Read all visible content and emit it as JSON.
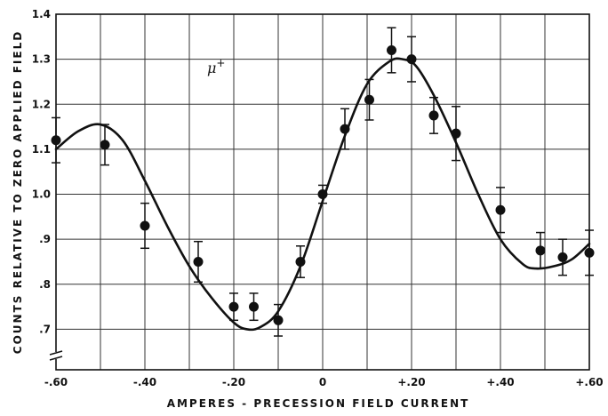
{
  "chart_data": {
    "type": "scatter",
    "title": "",
    "xlabel": "AMPERES - PRECESSION FIELD CURRENT",
    "ylabel": "COUNTS RELATIVE TO ZERO APPLIED FIELD",
    "xlim": [
      -0.6,
      0.6
    ],
    "ylim": [
      0.61,
      1.4
    ],
    "x_ticks": [
      {
        "value": -0.6,
        "label": "-.60"
      },
      {
        "value": -0.4,
        "label": "-.40"
      },
      {
        "value": -0.2,
        "label": "-.20"
      },
      {
        "value": 0.0,
        "label": "0"
      },
      {
        "value": 0.2,
        "label": "+.20"
      },
      {
        "value": 0.4,
        "label": "+.40"
      },
      {
        "value": 0.6,
        "label": "+.60"
      }
    ],
    "x_grid": [
      -0.6,
      -0.5,
      -0.4,
      -0.3,
      -0.2,
      -0.1,
      0.0,
      0.1,
      0.2,
      0.3,
      0.4,
      0.5,
      0.6
    ],
    "y_ticks": [
      {
        "value": 0.7,
        "label": ".7"
      },
      {
        "value": 0.8,
        "label": ".8"
      },
      {
        "value": 0.9,
        "label": ".9"
      },
      {
        "value": 1.0,
        "label": "1.0"
      },
      {
        "value": 1.1,
        "label": "1.1"
      },
      {
        "value": 1.2,
        "label": "1.2"
      },
      {
        "value": 1.3,
        "label": "1.3"
      },
      {
        "value": 1.4,
        "label": "1.4"
      }
    ],
    "grid": true,
    "axis_break": "y-bottom",
    "annotation": {
      "text": "μ",
      "superscript": "+",
      "x": -0.26,
      "y": 1.27
    },
    "series": [
      {
        "points": [
          {
            "x": -0.6,
            "y": 1.12,
            "err": 0.05
          },
          {
            "x": -0.49,
            "y": 1.11,
            "err": 0.045
          },
          {
            "x": -0.4,
            "y": 0.93,
            "err": 0.05
          },
          {
            "x": -0.28,
            "y": 0.85,
            "err": 0.045
          },
          {
            "x": -0.2,
            "y": 0.75,
            "err": 0.03
          },
          {
            "x": -0.155,
            "y": 0.75,
            "err": 0.03
          },
          {
            "x": -0.1,
            "y": 0.72,
            "err": 0.035
          },
          {
            "x": -0.05,
            "y": 0.85,
            "err": 0.035
          },
          {
            "x": 0.0,
            "y": 1.0,
            "err": 0.02
          },
          {
            "x": 0.05,
            "y": 1.145,
            "err": 0.045
          },
          {
            "x": 0.105,
            "y": 1.21,
            "err": 0.045
          },
          {
            "x": 0.155,
            "y": 1.32,
            "err": 0.05
          },
          {
            "x": 0.2,
            "y": 1.3,
            "err": 0.05
          },
          {
            "x": 0.25,
            "y": 1.175,
            "err": 0.04
          },
          {
            "x": 0.3,
            "y": 1.135,
            "err": 0.06
          },
          {
            "x": 0.4,
            "y": 0.965,
            "err": 0.05
          },
          {
            "x": 0.49,
            "y": 0.875,
            "err": 0.04
          },
          {
            "x": 0.54,
            "y": 0.86,
            "err": 0.04
          },
          {
            "x": 0.6,
            "y": 0.87,
            "err": 0.05
          }
        ]
      },
      {
        "type": "line",
        "curve": [
          {
            "x": -0.6,
            "y": 1.1
          },
          {
            "x": -0.55,
            "y": 1.14
          },
          {
            "x": -0.5,
            "y": 1.155
          },
          {
            "x": -0.45,
            "y": 1.12
          },
          {
            "x": -0.4,
            "y": 1.03
          },
          {
            "x": -0.35,
            "y": 0.93
          },
          {
            "x": -0.3,
            "y": 0.84
          },
          {
            "x": -0.25,
            "y": 0.77
          },
          {
            "x": -0.2,
            "y": 0.715
          },
          {
            "x": -0.17,
            "y": 0.7
          },
          {
            "x": -0.14,
            "y": 0.705
          },
          {
            "x": -0.1,
            "y": 0.74
          },
          {
            "x": -0.05,
            "y": 0.84
          },
          {
            "x": 0.0,
            "y": 0.985
          },
          {
            "x": 0.05,
            "y": 1.13
          },
          {
            "x": 0.1,
            "y": 1.245
          },
          {
            "x": 0.15,
            "y": 1.295
          },
          {
            "x": 0.18,
            "y": 1.3
          },
          {
            "x": 0.21,
            "y": 1.285
          },
          {
            "x": 0.25,
            "y": 1.22
          },
          {
            "x": 0.3,
            "y": 1.115
          },
          {
            "x": 0.35,
            "y": 1.0
          },
          {
            "x": 0.4,
            "y": 0.9
          },
          {
            "x": 0.45,
            "y": 0.845
          },
          {
            "x": 0.48,
            "y": 0.835
          },
          {
            "x": 0.52,
            "y": 0.84
          },
          {
            "x": 0.56,
            "y": 0.855
          },
          {
            "x": 0.6,
            "y": 0.89
          }
        ]
      }
    ],
    "style": {
      "ink": "#111111",
      "grid_color": "#333333",
      "background": "#ffffff"
    }
  }
}
